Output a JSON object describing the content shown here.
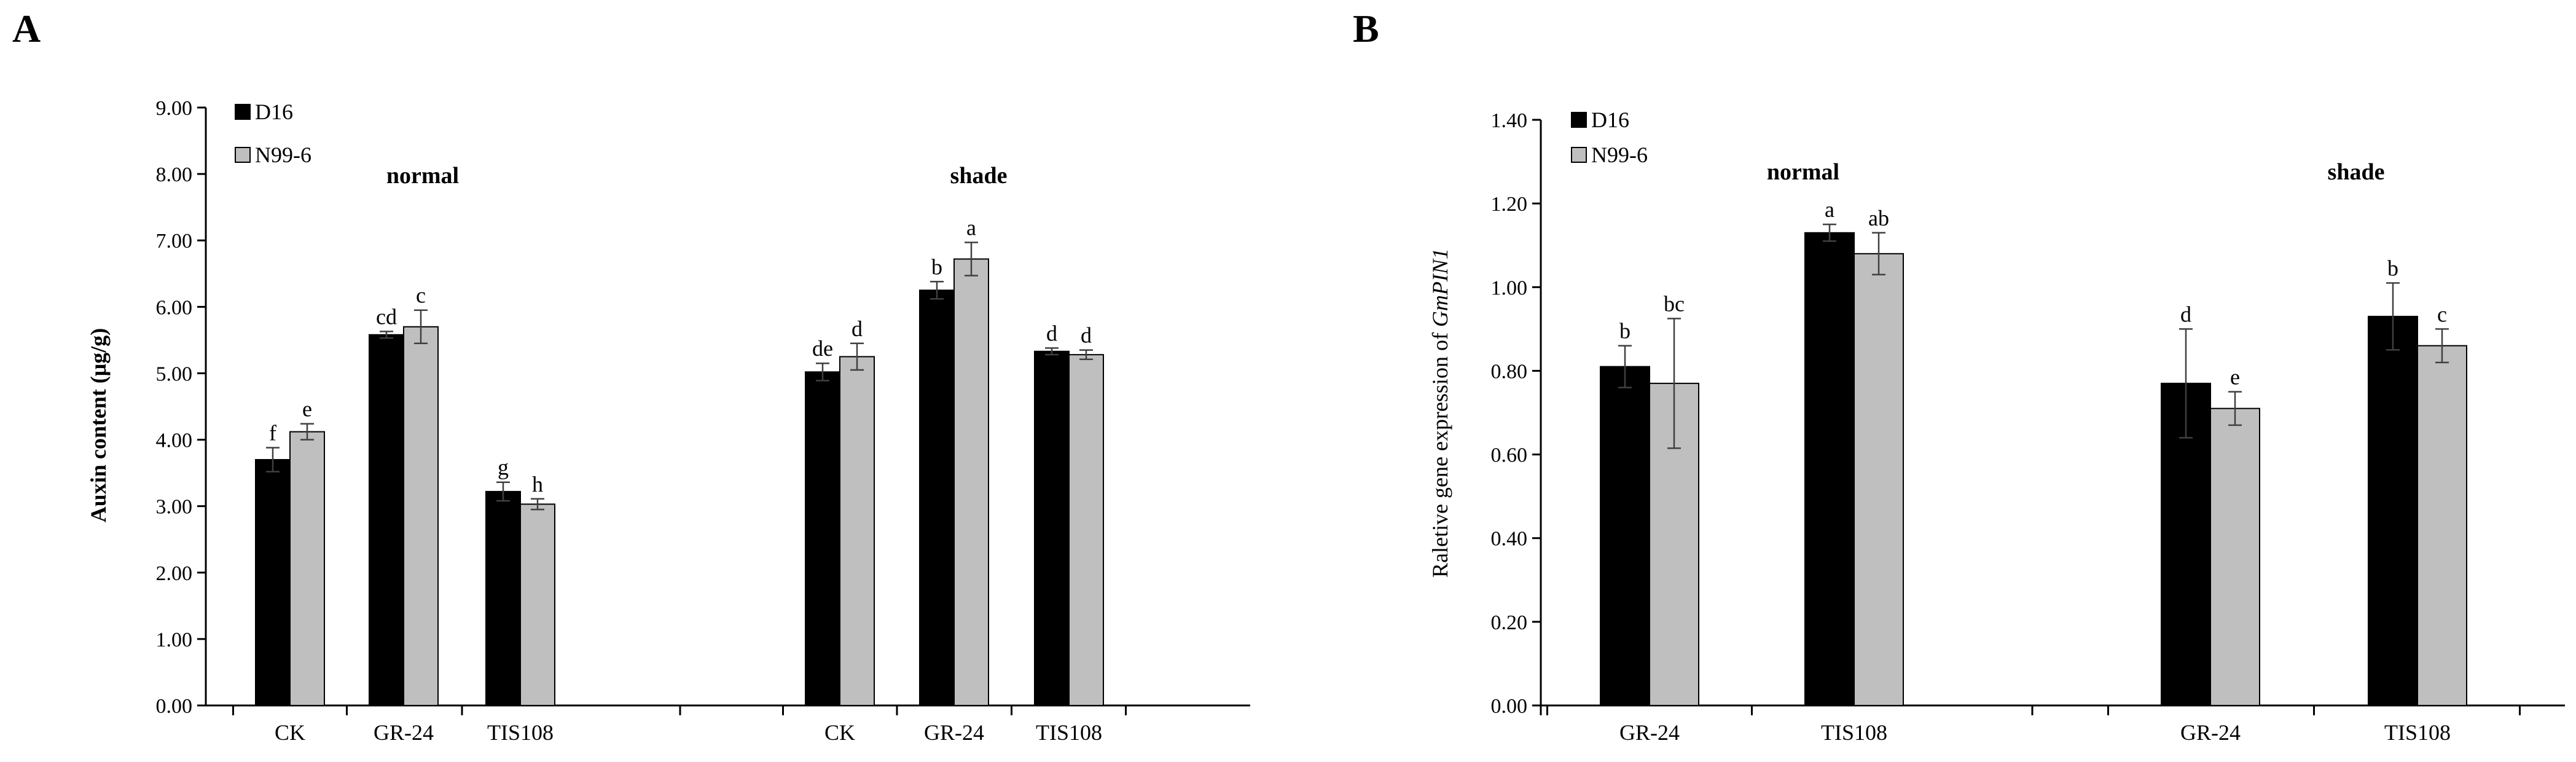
{
  "chart_data": [
    {
      "panel": "A",
      "type": "bar",
      "ylabel": "Auxin content (μg/g)",
      "ylim": [
        0,
        9
      ],
      "yticks": [
        "0.00",
        "1.00",
        "2.00",
        "3.00",
        "4.00",
        "5.00",
        "6.00",
        "7.00",
        "8.00",
        "9.00"
      ],
      "groups": [
        "normal",
        "shade"
      ],
      "categories": [
        "CK",
        "GR-24",
        "TIS108",
        "CK",
        "GR-24",
        "TIS108"
      ],
      "legend": [
        "D16",
        "N99-6"
      ],
      "colors": [
        "#000000",
        "#bfbfbf"
      ],
      "series": [
        {
          "name": "D16",
          "values": [
            3.7,
            5.58,
            3.22,
            5.02,
            6.25,
            5.33
          ],
          "errors": [
            0.18,
            0.05,
            0.14,
            0.13,
            0.13,
            0.05
          ],
          "letters": [
            "f",
            "cd",
            "g",
            "de",
            "b",
            "d"
          ]
        },
        {
          "name": "N99-6",
          "values": [
            4.12,
            5.7,
            3.03,
            5.25,
            6.72,
            5.28
          ],
          "errors": [
            0.12,
            0.25,
            0.08,
            0.2,
            0.25,
            0.07
          ],
          "letters": [
            "e",
            "c",
            "h",
            "d",
            "a",
            "d"
          ]
        }
      ]
    },
    {
      "panel": "B",
      "type": "bar",
      "ylabel_prefix": "Raletive gene expression of ",
      "ylabel_gene": "GmPIN1",
      "ylim": [
        0,
        1.4
      ],
      "yticks": [
        "0.00",
        "0.20",
        "0.40",
        "0.60",
        "0.80",
        "1.00",
        "1.20",
        "1.40"
      ],
      "groups": [
        "normal",
        "shade"
      ],
      "categories": [
        "GR-24",
        "TIS108",
        "GR-24",
        "TIS108"
      ],
      "legend": [
        "D16",
        "N99-6"
      ],
      "colors": [
        "#000000",
        "#bfbfbf"
      ],
      "series": [
        {
          "name": "D16",
          "values": [
            0.81,
            1.13,
            0.77,
            0.93
          ],
          "errors": [
            0.05,
            0.02,
            0.13,
            0.08
          ],
          "letters": [
            "b",
            "a",
            "d",
            "b"
          ]
        },
        {
          "name": "N99-6",
          "values": [
            0.77,
            1.08,
            0.71,
            0.86
          ],
          "errors": [
            0.155,
            0.05,
            0.04,
            0.04
          ],
          "letters": [
            "bc",
            "ab",
            "e",
            "c"
          ]
        }
      ]
    }
  ]
}
